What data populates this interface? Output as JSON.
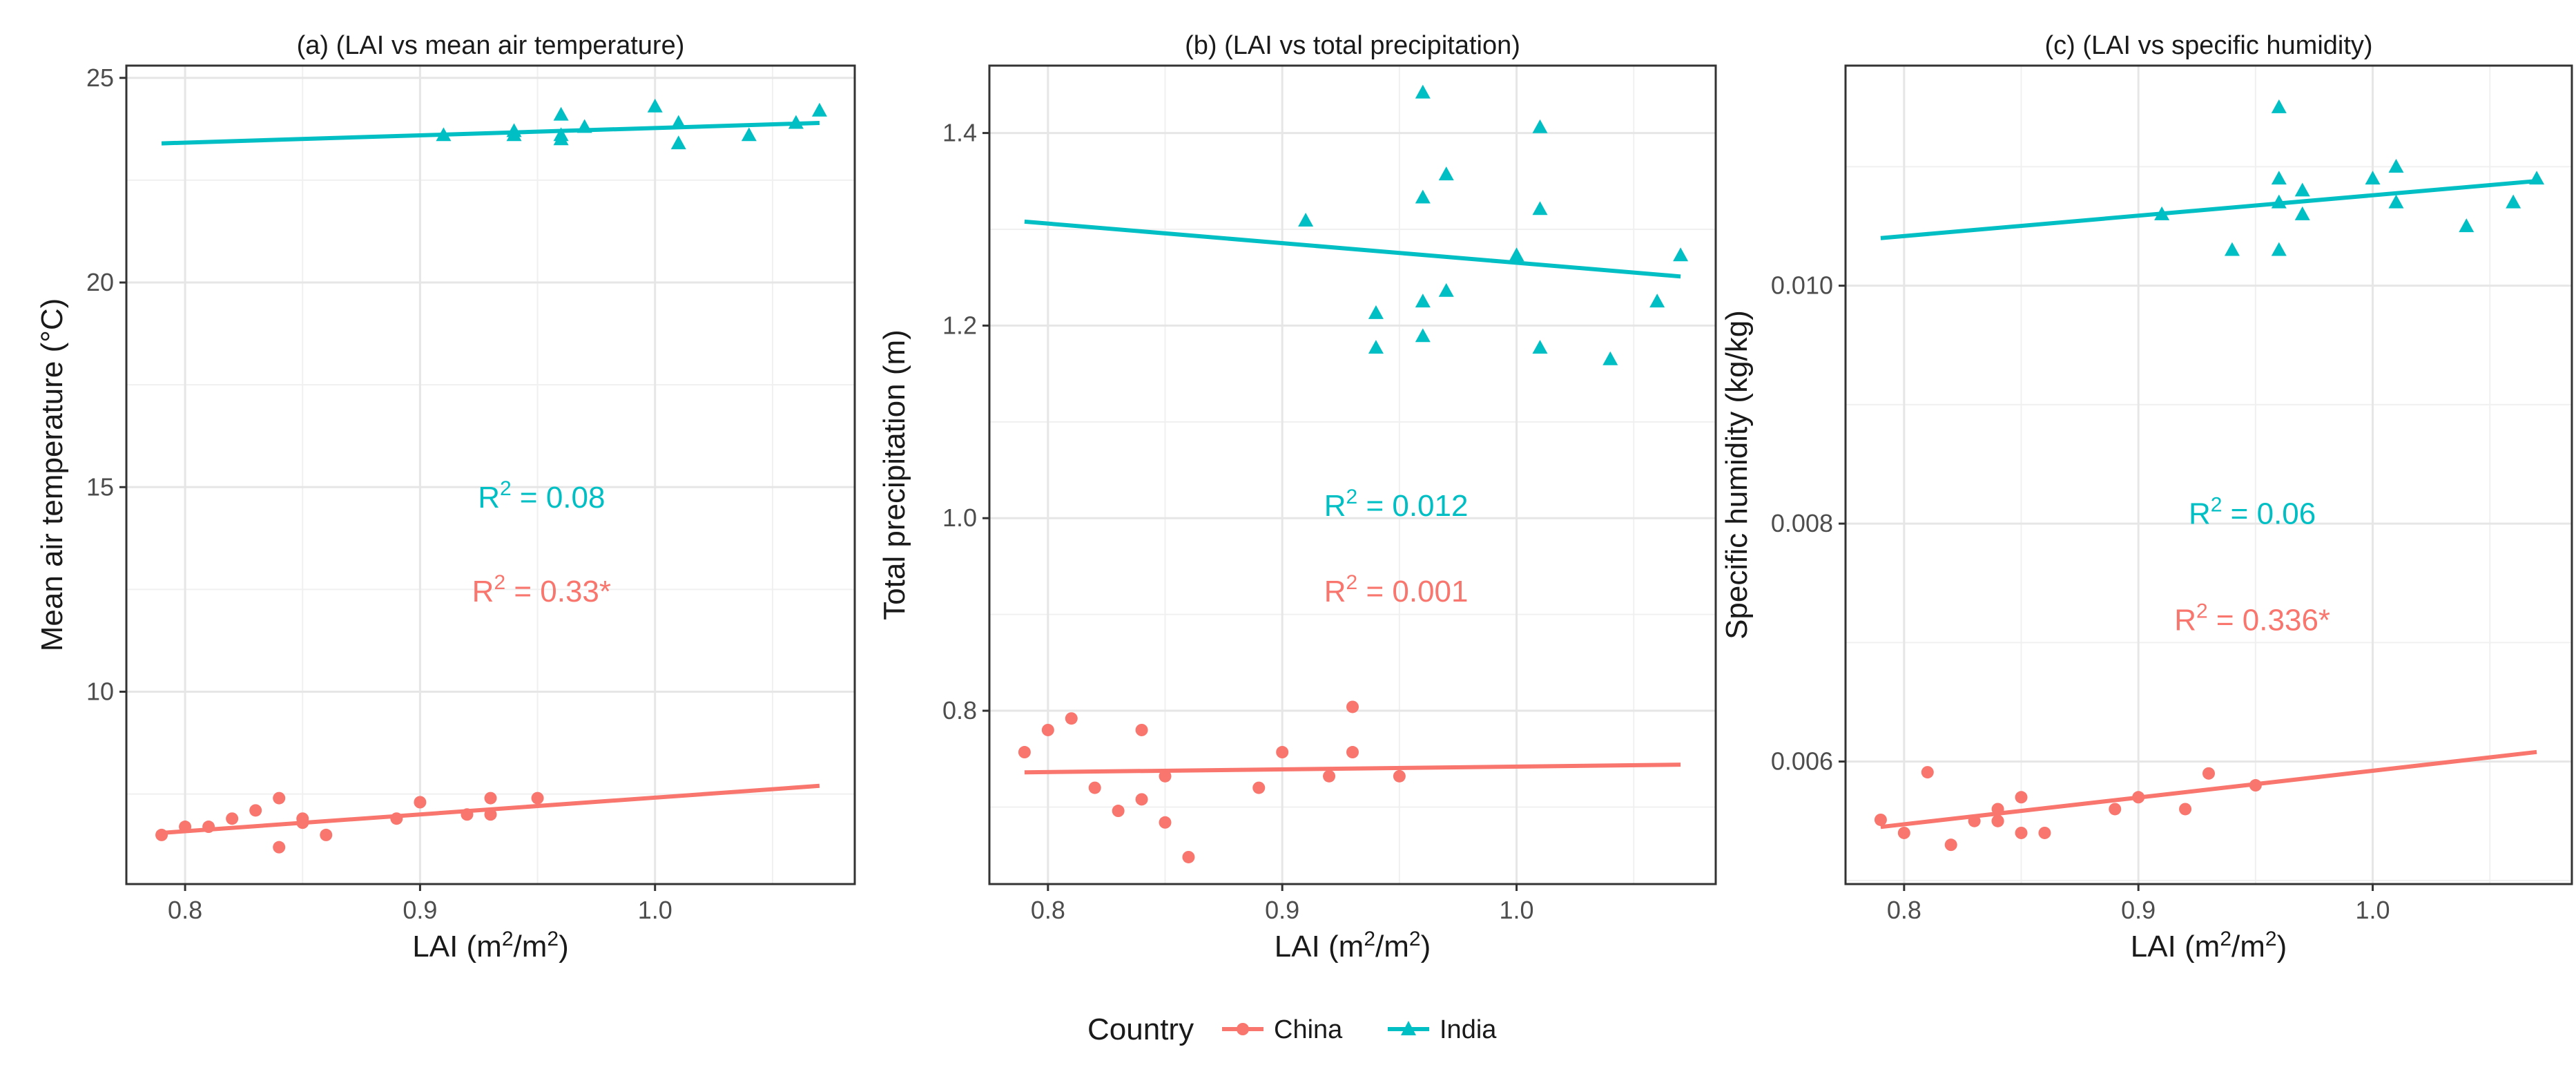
{
  "colors": {
    "china": "#F8766D",
    "india": "#00BFC4"
  },
  "legend": {
    "title": "Country",
    "items": [
      {
        "name": "China",
        "color": "#F8766D",
        "shape": "circle"
      },
      {
        "name": "India",
        "color": "#00BFC4",
        "shape": "triangle"
      }
    ]
  },
  "chart_data": [
    {
      "type": "scatter",
      "title": "(a) (LAI vs mean air temperature)",
      "xlabel": "LAI (m²/m²)",
      "ylabel": "Mean air temperature (°C)",
      "xlim": [
        0.775,
        1.085
      ],
      "ylim": [
        5.3,
        25.3
      ],
      "xticks": [
        0.8,
        0.9,
        1.0
      ],
      "xtick_labels": [
        "0.8",
        "0.9",
        "1.0"
      ],
      "yticks": [
        10,
        15,
        20,
        25
      ],
      "ytick_labels": [
        "10",
        "15",
        "20",
        "25"
      ],
      "series": [
        {
          "name": "China",
          "x": [
            0.79,
            0.8,
            0.81,
            0.82,
            0.83,
            0.84,
            0.84,
            0.85,
            0.85,
            0.86,
            0.89,
            0.9,
            0.92,
            0.93,
            0.93,
            0.95
          ],
          "y": [
            6.5,
            6.7,
            6.7,
            6.9,
            7.1,
            7.4,
            6.2,
            6.8,
            6.9,
            6.5,
            6.9,
            7.3,
            7.0,
            7.0,
            7.4,
            7.4
          ],
          "fit": [
            [
              0.79,
              6.55
            ],
            [
              1.07,
              7.7
            ]
          ],
          "r2": "0.33",
          "significant": true
        },
        {
          "name": "India",
          "x": [
            0.91,
            0.94,
            0.94,
            0.96,
            0.96,
            0.96,
            0.97,
            1.0,
            1.01,
            1.01,
            1.04,
            1.06,
            1.07
          ],
          "y": [
            23.6,
            23.6,
            23.7,
            23.5,
            23.6,
            24.1,
            23.8,
            24.3,
            23.9,
            23.4,
            23.6,
            23.9,
            24.2
          ],
          "fit": [
            [
              0.79,
              23.4
            ],
            [
              1.07,
              23.9
            ]
          ],
          "r2": "0.08",
          "significant": false
        }
      ]
    },
    {
      "type": "scatter",
      "title": "(b) (LAI vs total precipitation)",
      "xlabel": "LAI (m²/m²)",
      "ylabel": "Total precipitation (m)",
      "xlim": [
        0.775,
        1.085
      ],
      "ylim": [
        0.62,
        1.47
      ],
      "xticks": [
        0.8,
        0.9,
        1.0
      ],
      "xtick_labels": [
        "0.8",
        "0.9",
        "1.0"
      ],
      "yticks": [
        0.8,
        1.0,
        1.2,
        1.4
      ],
      "ytick_labels": [
        "0.8",
        "1.0",
        "1.2",
        "1.4"
      ],
      "series": [
        {
          "name": "China",
          "x": [
            0.79,
            0.8,
            0.81,
            0.82,
            0.83,
            0.84,
            0.84,
            0.85,
            0.85,
            0.86,
            0.89,
            0.9,
            0.92,
            0.93,
            0.93,
            0.95
          ],
          "y": [
            0.757,
            0.78,
            0.792,
            0.72,
            0.696,
            0.78,
            0.708,
            0.732,
            0.684,
            0.648,
            0.72,
            0.757,
            0.732,
            0.757,
            0.804,
            0.732
          ],
          "fit": [
            [
              0.79,
              0.736
            ],
            [
              1.07,
              0.744
            ]
          ],
          "r2": "0.001",
          "significant": false
        },
        {
          "name": "India",
          "x": [
            0.91,
            0.94,
            0.94,
            0.96,
            0.96,
            0.96,
            0.96,
            0.97,
            0.97,
            1.0,
            1.01,
            1.01,
            1.01,
            1.04,
            1.06,
            1.07
          ],
          "y": [
            1.309,
            1.213,
            1.177,
            1.442,
            1.333,
            1.225,
            1.189,
            1.357,
            1.236,
            1.273,
            1.406,
            1.321,
            1.177,
            1.165,
            1.225,
            1.273
          ],
          "fit": [
            [
              0.79,
              1.308
            ],
            [
              1.07,
              1.251
            ]
          ],
          "r2": "0.012",
          "significant": false
        }
      ]
    },
    {
      "type": "scatter",
      "title": "(c) (LAI vs specific humidity)",
      "xlabel": "LAI (m²/m²)",
      "ylabel": "Specific humidity (kg/kg)",
      "xlim": [
        0.775,
        1.085
      ],
      "ylim": [
        0.00497,
        0.01185
      ],
      "xticks": [
        0.8,
        0.9,
        1.0
      ],
      "xtick_labels": [
        "0.8",
        "0.9",
        "1.0"
      ],
      "yticks": [
        0.006,
        0.008,
        0.01
      ],
      "ytick_labels": [
        "0.006",
        "0.008",
        "0.010"
      ],
      "series": [
        {
          "name": "China",
          "x": [
            0.79,
            0.8,
            0.81,
            0.82,
            0.83,
            0.84,
            0.84,
            0.84,
            0.85,
            0.85,
            0.86,
            0.89,
            0.9,
            0.92,
            0.93,
            0.95
          ],
          "y": [
            0.00551,
            0.0054,
            0.00591,
            0.0053,
            0.0055,
            0.0056,
            0.0055,
            0.0055,
            0.0057,
            0.0054,
            0.0054,
            0.0056,
            0.0057,
            0.0056,
            0.0059,
            0.0058
          ],
          "fit": [
            [
              0.79,
              0.00545
            ],
            [
              1.07,
              0.00608
            ]
          ],
          "r2": "0.336",
          "significant": true
        },
        {
          "name": "India",
          "x": [
            0.91,
            0.94,
            0.96,
            0.96,
            0.96,
            0.96,
            0.97,
            0.97,
            1.0,
            1.01,
            1.01,
            1.04,
            1.06,
            1.07
          ],
          "y": [
            0.0106,
            0.0103,
            0.0115,
            0.0109,
            0.0107,
            0.0103,
            0.0108,
            0.0106,
            0.0109,
            0.011,
            0.0107,
            0.0105,
            0.0107,
            0.0109
          ],
          "fit": [
            [
              0.79,
              0.0104
            ],
            [
              1.07,
              0.01088
            ]
          ],
          "r2": "0.06",
          "significant": false
        }
      ]
    }
  ]
}
